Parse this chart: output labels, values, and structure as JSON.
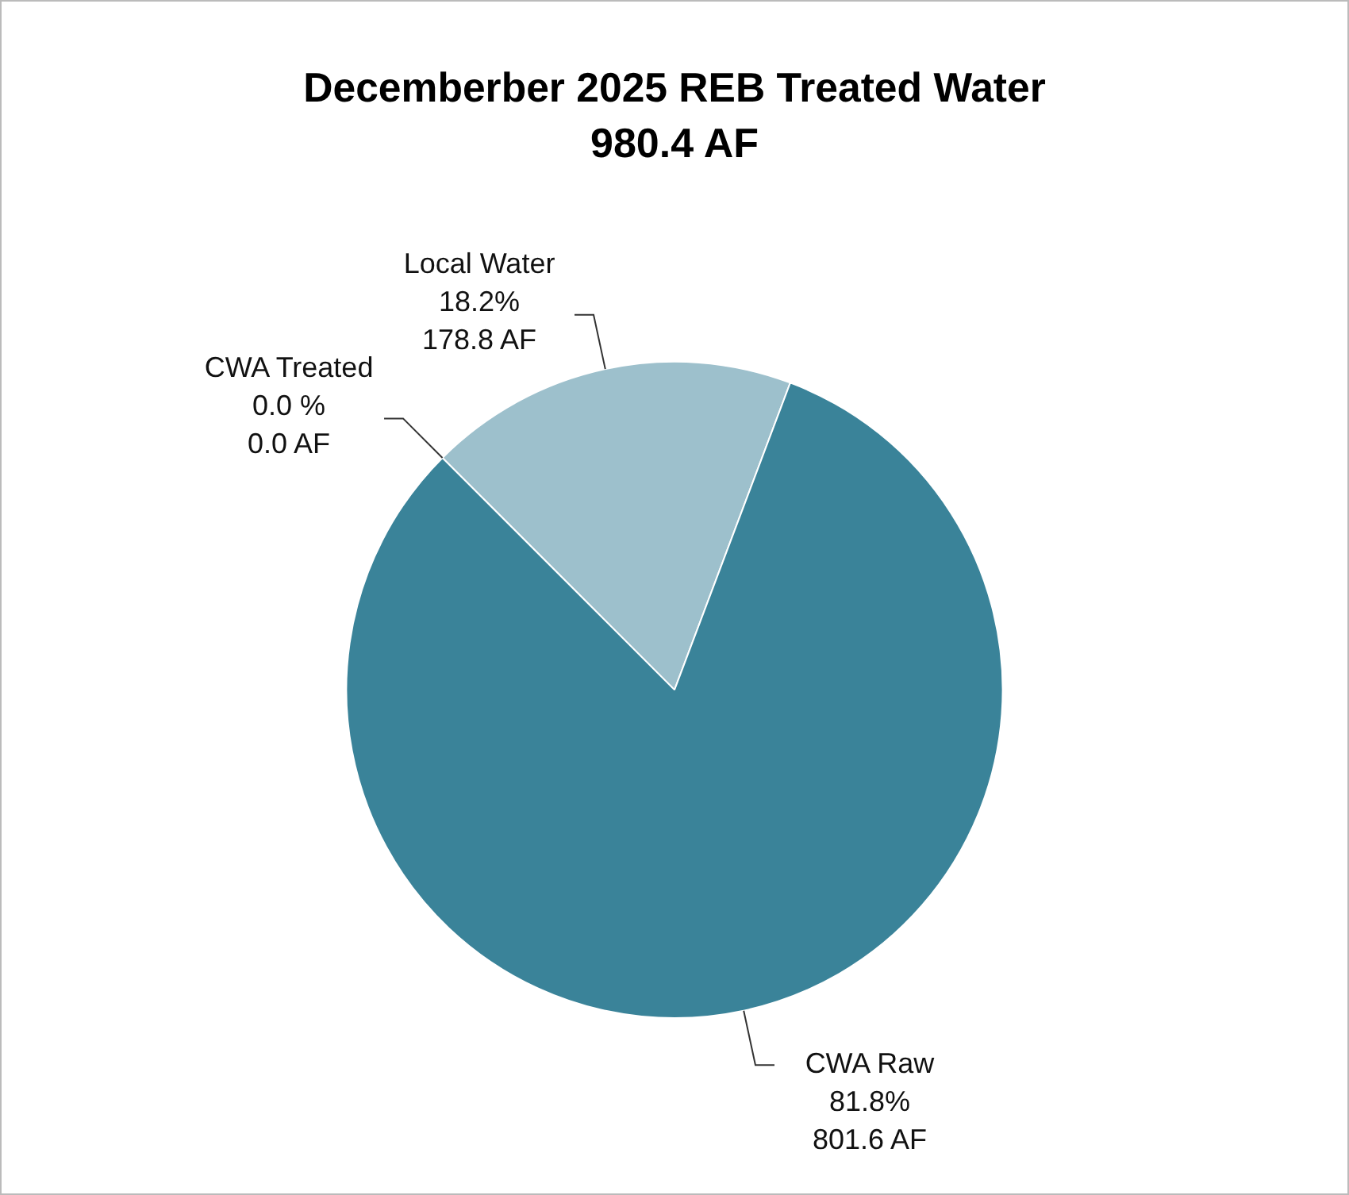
{
  "chart_data": {
    "type": "pie",
    "title": "Decemberber 2025 REB Treated Water",
    "subtitle": "980.4 AF",
    "categories": [
      "CWA Treated",
      "Local Water",
      "CWA Raw"
    ],
    "values": [
      0.0,
      178.8,
      801.6
    ],
    "colors": [
      "#1f4e5f",
      "#9dc0cc",
      "#3a8399"
    ],
    "value_labels": [
      "0.0 %\n0.0 AF",
      "18.2%\n178.8 AF",
      "81.8%\n801.6 AF"
    ],
    "legend": false
  }
}
